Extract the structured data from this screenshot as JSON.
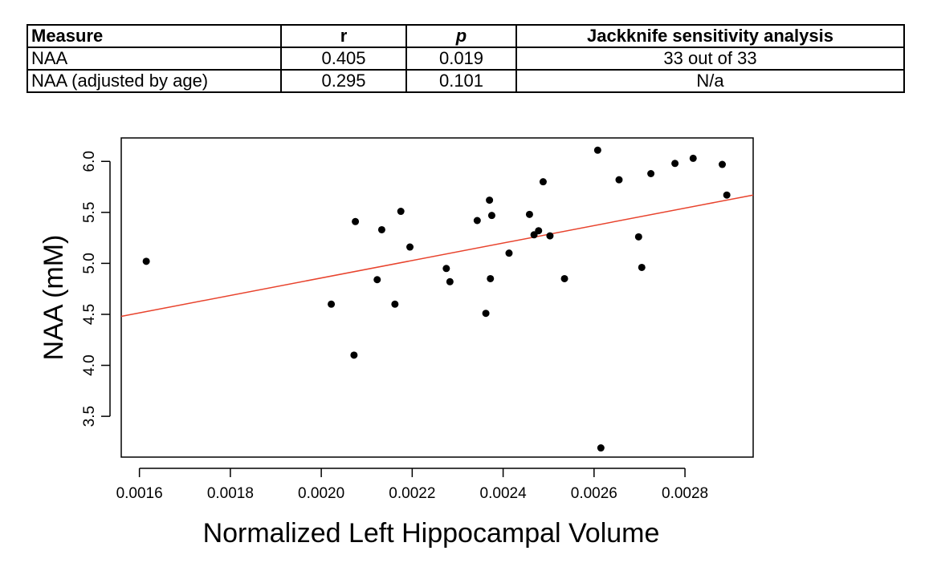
{
  "table": {
    "headers": [
      "Measure",
      "r",
      "p",
      "Jackknife sensitivity analysis"
    ],
    "rows": [
      [
        "NAA",
        "0.405",
        "0.019",
        "33 out of 33"
      ],
      [
        "NAA (adjusted by age)",
        "0.295",
        "0.101",
        "N/a"
      ]
    ]
  },
  "chart_data": {
    "type": "scatter",
    "xlabel": "Normalized Left Hippocampal Volume",
    "ylabel": "NAA (mM)",
    "xlim": [
      0.00156,
      0.00295
    ],
    "ylim": [
      3.1,
      6.23
    ],
    "x_ticks": [
      0.0016,
      0.0018,
      0.002,
      0.0022,
      0.0024,
      0.0026,
      0.0028
    ],
    "x_tick_labels": [
      "0.0016",
      "0.0018",
      "0.0020",
      "0.0022",
      "0.0024",
      "0.0026",
      "0.0028"
    ],
    "y_ticks": [
      3.5,
      4.0,
      4.5,
      5.0,
      5.5,
      6.0
    ],
    "y_tick_labels": [
      "3.5",
      "4.0",
      "4.5",
      "5.0",
      "5.5",
      "6.0"
    ],
    "line_color": "#e8432d",
    "point_color": "#000000",
    "regression_line": {
      "x": [
        0.00156,
        0.00295
      ],
      "y": [
        4.48,
        5.67
      ]
    },
    "points": [
      {
        "x": 0.001615,
        "y": 5.02
      },
      {
        "x": 0.002022,
        "y": 4.6
      },
      {
        "x": 0.002072,
        "y": 4.1
      },
      {
        "x": 0.002075,
        "y": 5.41
      },
      {
        "x": 0.002123,
        "y": 4.84
      },
      {
        "x": 0.002133,
        "y": 5.33
      },
      {
        "x": 0.002162,
        "y": 4.6
      },
      {
        "x": 0.002175,
        "y": 5.51
      },
      {
        "x": 0.002195,
        "y": 5.16
      },
      {
        "x": 0.002275,
        "y": 4.95
      },
      {
        "x": 0.002283,
        "y": 4.82
      },
      {
        "x": 0.002343,
        "y": 5.42
      },
      {
        "x": 0.002362,
        "y": 4.51
      },
      {
        "x": 0.00237,
        "y": 5.62
      },
      {
        "x": 0.002372,
        "y": 4.85
      },
      {
        "x": 0.002375,
        "y": 5.47
      },
      {
        "x": 0.002413,
        "y": 5.1
      },
      {
        "x": 0.002458,
        "y": 5.48
      },
      {
        "x": 0.002468,
        "y": 5.28
      },
      {
        "x": 0.002478,
        "y": 5.32
      },
      {
        "x": 0.002488,
        "y": 5.8
      },
      {
        "x": 0.002503,
        "y": 5.27
      },
      {
        "x": 0.002535,
        "y": 4.85
      },
      {
        "x": 0.002608,
        "y": 6.11
      },
      {
        "x": 0.002615,
        "y": 3.19
      },
      {
        "x": 0.002655,
        "y": 5.82
      },
      {
        "x": 0.002698,
        "y": 5.26
      },
      {
        "x": 0.002705,
        "y": 4.96
      },
      {
        "x": 0.002725,
        "y": 5.88
      },
      {
        "x": 0.002778,
        "y": 5.98
      },
      {
        "x": 0.002818,
        "y": 6.03
      },
      {
        "x": 0.002882,
        "y": 5.97
      },
      {
        "x": 0.002892,
        "y": 5.67
      }
    ]
  }
}
